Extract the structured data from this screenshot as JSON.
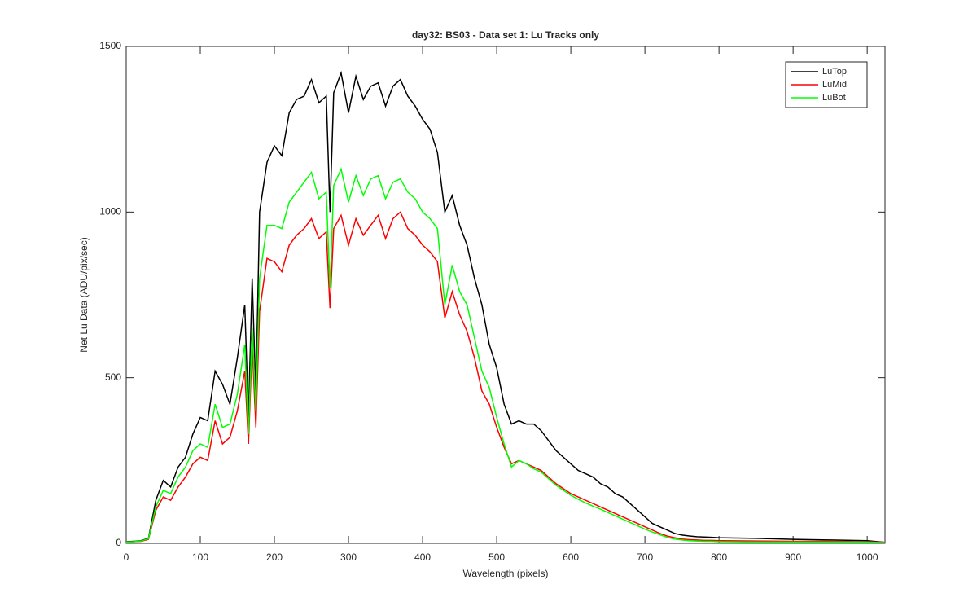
{
  "chart_data": {
    "type": "line",
    "title": "day32: BS03 - Data set 1: Lu Tracks only",
    "xlabel": "Wavelength (pixels)",
    "ylabel": "Net Lu Data (ADU/pix/sec)",
    "x": [
      0,
      10,
      20,
      30,
      40,
      50,
      60,
      70,
      80,
      90,
      100,
      110,
      120,
      130,
      140,
      150,
      160,
      165,
      170,
      175,
      180,
      190,
      200,
      210,
      220,
      230,
      240,
      250,
      260,
      270,
      275,
      280,
      290,
      300,
      310,
      320,
      330,
      340,
      350,
      360,
      370,
      380,
      390,
      400,
      410,
      420,
      430,
      440,
      450,
      460,
      470,
      480,
      490,
      500,
      510,
      520,
      530,
      540,
      550,
      560,
      570,
      580,
      590,
      600,
      610,
      620,
      630,
      640,
      650,
      660,
      670,
      680,
      690,
      700,
      710,
      720,
      730,
      740,
      750,
      760,
      770,
      780,
      790,
      800,
      850,
      900,
      950,
      1000,
      1024
    ],
    "series": [
      {
        "name": "LuTop",
        "color": "#000000",
        "values": [
          5,
          6,
          8,
          15,
          130,
          190,
          170,
          230,
          260,
          330,
          380,
          370,
          520,
          480,
          420,
          560,
          720,
          380,
          800,
          450,
          1000,
          1150,
          1200,
          1170,
          1300,
          1340,
          1350,
          1400,
          1330,
          1350,
          1000,
          1360,
          1420,
          1300,
          1410,
          1340,
          1380,
          1390,
          1320,
          1380,
          1400,
          1350,
          1320,
          1280,
          1250,
          1180,
          1000,
          1050,
          960,
          900,
          800,
          720,
          600,
          530,
          420,
          360,
          370,
          360,
          360,
          340,
          310,
          280,
          260,
          240,
          220,
          210,
          200,
          180,
          170,
          150,
          140,
          120,
          100,
          80,
          60,
          50,
          40,
          30,
          25,
          22,
          20,
          19,
          18,
          17,
          15,
          12,
          10,
          8,
          3
        ]
      },
      {
        "name": "LuMid",
        "color": "#ff0000",
        "values": [
          4,
          5,
          6,
          12,
          100,
          140,
          130,
          170,
          200,
          240,
          260,
          250,
          370,
          300,
          320,
          400,
          520,
          300,
          600,
          350,
          700,
          860,
          850,
          820,
          900,
          930,
          950,
          980,
          920,
          940,
          710,
          950,
          990,
          900,
          980,
          930,
          960,
          990,
          920,
          980,
          1000,
          950,
          930,
          900,
          880,
          850,
          680,
          760,
          690,
          640,
          560,
          460,
          420,
          350,
          290,
          240,
          250,
          240,
          230,
          220,
          200,
          180,
          165,
          150,
          140,
          130,
          120,
          110,
          100,
          90,
          80,
          70,
          60,
          50,
          40,
          30,
          22,
          17,
          13,
          11,
          10,
          9,
          9,
          8,
          7,
          6,
          6,
          5,
          3
        ]
      },
      {
        "name": "LuBot",
        "color": "#00ff00",
        "values": [
          4,
          5,
          7,
          14,
          110,
          160,
          150,
          200,
          230,
          280,
          300,
          290,
          420,
          350,
          360,
          450,
          600,
          330,
          650,
          400,
          800,
          960,
          960,
          950,
          1030,
          1060,
          1090,
          1120,
          1040,
          1060,
          770,
          1080,
          1130,
          1030,
          1110,
          1050,
          1100,
          1110,
          1040,
          1090,
          1100,
          1060,
          1040,
          1000,
          980,
          950,
          720,
          840,
          760,
          720,
          620,
          520,
          470,
          380,
          300,
          230,
          250,
          240,
          225,
          215,
          195,
          175,
          160,
          145,
          133,
          122,
          112,
          103,
          93,
          83,
          73,
          63,
          53,
          43,
          34,
          26,
          18,
          13,
          10,
          8,
          7,
          6,
          6,
          5,
          4,
          4,
          4,
          4,
          2
        ]
      }
    ],
    "xlim": [
      0,
      1024
    ],
    "xticks": [
      0,
      100,
      200,
      300,
      400,
      500,
      600,
      700,
      800,
      900,
      1000
    ],
    "ylim": [
      0,
      1500
    ],
    "yticks": [
      0,
      500,
      1000,
      1500
    ],
    "grid": false,
    "legend": "top-right"
  }
}
